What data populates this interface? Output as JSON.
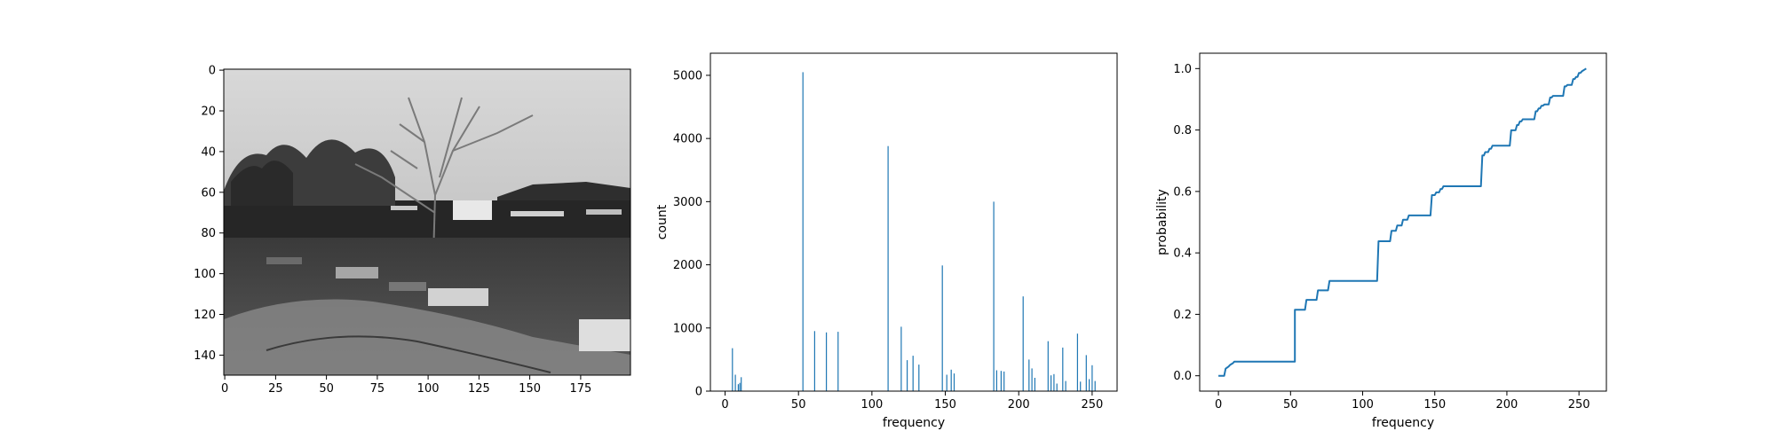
{
  "image_panel": {
    "x_ticks": [
      "0",
      "25",
      "50",
      "75",
      "100",
      "125",
      "150",
      "175"
    ],
    "y_ticks": [
      "0",
      "20",
      "40",
      "60",
      "80",
      "100",
      "120",
      "140"
    ],
    "colormap": "gray"
  },
  "chart_data": [
    {
      "type": "bar",
      "xlabel": "frequency",
      "ylabel": "count",
      "xlim": [
        -10,
        267
      ],
      "ylim": [
        0,
        5350
      ],
      "x_ticks": [
        0,
        50,
        100,
        150,
        200,
        250
      ],
      "y_ticks": [
        0,
        1000,
        2000,
        3000,
        4000,
        5000
      ],
      "bar_color": "#1f77b4",
      "x": [
        5,
        7,
        9,
        10,
        11,
        53,
        61,
        69,
        77,
        111,
        120,
        124,
        128,
        132,
        148,
        151,
        154,
        156,
        183,
        185,
        188,
        190,
        203,
        207,
        209,
        211,
        220,
        222,
        224,
        226,
        230,
        232,
        240,
        242,
        246,
        248,
        250,
        252
      ],
      "values": [
        680,
        260,
        110,
        130,
        220,
        5050,
        950,
        930,
        940,
        3880,
        1020,
        490,
        560,
        420,
        1990,
        260,
        340,
        280,
        3000,
        330,
        320,
        310,
        1500,
        500,
        360,
        210,
        790,
        250,
        270,
        120,
        690,
        160,
        910,
        150,
        570,
        190,
        410,
        160
      ]
    },
    {
      "type": "line",
      "xlabel": "frequency",
      "ylabel": "probability",
      "xlim": [
        -13,
        269
      ],
      "ylim": [
        -0.05,
        1.05
      ],
      "x_ticks": [
        0,
        50,
        100,
        150,
        200,
        250
      ],
      "y_ticks": [
        0.0,
        0.2,
        0.4,
        0.6,
        0.8,
        1.0
      ],
      "y_tick_labels": [
        "0.0",
        "0.2",
        "0.4",
        "0.6",
        "0.8",
        "1.0"
      ],
      "line_color": "#1f77b4",
      "x": [
        0,
        4,
        5,
        7,
        8,
        9,
        10,
        11,
        53,
        53,
        60,
        61,
        68,
        69,
        76,
        77,
        110,
        111,
        119,
        120,
        123,
        124,
        127,
        128,
        131,
        132,
        147,
        148,
        150,
        151,
        153,
        154,
        155,
        156,
        182,
        183,
        184,
        185,
        187,
        188,
        189,
        190,
        202,
        203,
        206,
        207,
        208,
        209,
        210,
        211,
        219,
        220,
        221,
        222,
        223,
        224,
        225,
        226,
        229,
        230,
        231,
        232,
        239,
        240,
        241,
        242,
        245,
        246,
        247,
        248,
        249,
        250,
        251,
        252,
        255
      ],
      "y": [
        0.0,
        0.0,
        0.023,
        0.03,
        0.035,
        0.038,
        0.041,
        0.046,
        0.046,
        0.215,
        0.215,
        0.247,
        0.247,
        0.278,
        0.278,
        0.309,
        0.309,
        0.438,
        0.438,
        0.472,
        0.472,
        0.489,
        0.489,
        0.508,
        0.508,
        0.522,
        0.522,
        0.588,
        0.588,
        0.597,
        0.597,
        0.608,
        0.608,
        0.617,
        0.617,
        0.717,
        0.717,
        0.728,
        0.728,
        0.739,
        0.739,
        0.749,
        0.749,
        0.799,
        0.799,
        0.816,
        0.816,
        0.828,
        0.828,
        0.835,
        0.835,
        0.861,
        0.861,
        0.87,
        0.87,
        0.879,
        0.879,
        0.883,
        0.883,
        0.906,
        0.906,
        0.911,
        0.911,
        0.942,
        0.942,
        0.947,
        0.947,
        0.966,
        0.966,
        0.973,
        0.973,
        0.986,
        0.986,
        0.991,
        1.0
      ]
    }
  ]
}
